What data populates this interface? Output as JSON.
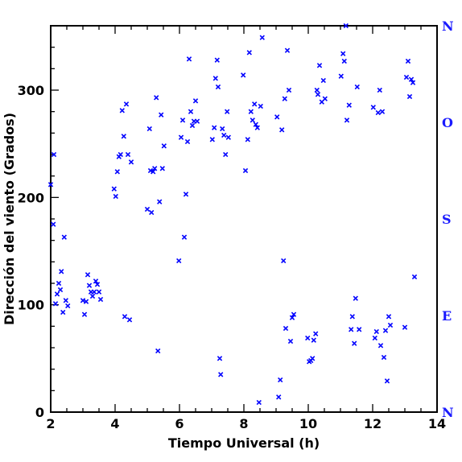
{
  "chart_data": {
    "type": "scatter",
    "xlabel": "Tiempo Universal (h)",
    "ylabel": "Dirección del viento (Grados)",
    "xlim": [
      2,
      14
    ],
    "ylim": [
      0,
      360
    ],
    "x_ticks": [
      2,
      4,
      6,
      8,
      10,
      12,
      14
    ],
    "y_ticks": [
      0,
      100,
      200,
      300
    ],
    "right_axis_labels": [
      {
        "label": "N",
        "value": 0
      },
      {
        "label": "E",
        "value": 90
      },
      {
        "label": "S",
        "value": 180
      },
      {
        "label": "O",
        "value": 270
      },
      {
        "label": "N",
        "value": 360
      }
    ],
    "grid": false,
    "marker": "x",
    "colors": {
      "marker": "#0000ff",
      "right_axis": "#1a1aff",
      "axis": "#000000"
    },
    "points": [
      [
        2.0,
        212
      ],
      [
        2.08,
        175
      ],
      [
        2.1,
        240
      ],
      [
        2.15,
        101
      ],
      [
        2.2,
        110
      ],
      [
        2.25,
        120
      ],
      [
        2.3,
        114
      ],
      [
        2.33,
        131
      ],
      [
        2.38,
        93
      ],
      [
        2.42,
        163
      ],
      [
        2.47,
        104
      ],
      [
        2.53,
        99
      ],
      [
        3.0,
        104
      ],
      [
        3.05,
        91
      ],
      [
        3.1,
        103
      ],
      [
        3.15,
        128
      ],
      [
        3.2,
        118
      ],
      [
        3.25,
        112
      ],
      [
        3.3,
        108
      ],
      [
        3.35,
        112
      ],
      [
        3.4,
        122
      ],
      [
        3.45,
        119
      ],
      [
        3.5,
        112
      ],
      [
        3.55,
        105
      ],
      [
        3.97,
        208
      ],
      [
        4.02,
        201
      ],
      [
        4.07,
        224
      ],
      [
        4.12,
        238
      ],
      [
        4.17,
        240
      ],
      [
        4.22,
        281
      ],
      [
        4.27,
        257
      ],
      [
        4.3,
        89
      ],
      [
        4.35,
        287
      ],
      [
        4.4,
        240
      ],
      [
        4.45,
        86
      ],
      [
        4.5,
        233
      ],
      [
        5.0,
        189
      ],
      [
        5.07,
        264
      ],
      [
        5.1,
        225
      ],
      [
        5.13,
        186
      ],
      [
        5.18,
        224
      ],
      [
        5.23,
        227
      ],
      [
        5.28,
        293
      ],
      [
        5.33,
        57
      ],
      [
        5.38,
        196
      ],
      [
        5.43,
        277
      ],
      [
        5.47,
        227
      ],
      [
        5.52,
        248
      ],
      [
        5.98,
        141
      ],
      [
        6.05,
        256
      ],
      [
        6.1,
        272
      ],
      [
        6.15,
        163
      ],
      [
        6.2,
        203
      ],
      [
        6.25,
        252
      ],
      [
        6.3,
        329
      ],
      [
        6.35,
        280
      ],
      [
        6.4,
        267
      ],
      [
        6.45,
        271
      ],
      [
        6.5,
        290
      ],
      [
        6.55,
        271
      ],
      [
        7.02,
        254
      ],
      [
        7.08,
        265
      ],
      [
        7.12,
        311
      ],
      [
        7.17,
        328
      ],
      [
        7.2,
        303
      ],
      [
        7.25,
        50
      ],
      [
        7.28,
        35
      ],
      [
        7.33,
        264
      ],
      [
        7.38,
        258
      ],
      [
        7.43,
        240
      ],
      [
        7.48,
        280
      ],
      [
        7.52,
        256
      ],
      [
        7.98,
        314
      ],
      [
        8.05,
        225
      ],
      [
        8.12,
        254
      ],
      [
        8.17,
        335
      ],
      [
        8.22,
        280
      ],
      [
        8.27,
        272
      ],
      [
        8.33,
        287
      ],
      [
        8.37,
        268
      ],
      [
        8.42,
        265
      ],
      [
        8.47,
        9
      ],
      [
        8.52,
        285
      ],
      [
        8.57,
        349
      ],
      [
        9.03,
        275
      ],
      [
        9.08,
        14
      ],
      [
        9.13,
        30
      ],
      [
        9.18,
        263
      ],
      [
        9.23,
        141
      ],
      [
        9.27,
        292
      ],
      [
        9.3,
        78
      ],
      [
        9.35,
        337
      ],
      [
        9.4,
        300
      ],
      [
        9.45,
        66
      ],
      [
        9.5,
        88
      ],
      [
        9.55,
        91
      ],
      [
        9.98,
        69
      ],
      [
        10.03,
        47
      ],
      [
        10.08,
        48
      ],
      [
        10.13,
        50
      ],
      [
        10.17,
        67
      ],
      [
        10.23,
        73
      ],
      [
        10.27,
        300
      ],
      [
        10.3,
        296
      ],
      [
        10.35,
        323
      ],
      [
        10.42,
        289
      ],
      [
        10.47,
        309
      ],
      [
        10.52,
        292
      ],
      [
        11.02,
        313
      ],
      [
        11.08,
        334
      ],
      [
        11.12,
        327
      ],
      [
        11.17,
        360
      ],
      [
        11.2,
        272
      ],
      [
        11.27,
        286
      ],
      [
        11.33,
        77
      ],
      [
        11.37,
        89
      ],
      [
        11.43,
        64
      ],
      [
        11.47,
        106
      ],
      [
        11.52,
        303
      ],
      [
        11.58,
        77
      ],
      [
        12.02,
        284
      ],
      [
        12.07,
        69
      ],
      [
        12.12,
        75
      ],
      [
        12.17,
        279
      ],
      [
        12.22,
        300
      ],
      [
        12.25,
        62
      ],
      [
        12.3,
        280
      ],
      [
        12.35,
        51
      ],
      [
        12.4,
        76
      ],
      [
        12.45,
        29
      ],
      [
        12.5,
        89
      ],
      [
        12.55,
        81
      ],
      [
        13.0,
        79
      ],
      [
        13.05,
        312
      ],
      [
        13.1,
        327
      ],
      [
        13.15,
        294
      ],
      [
        13.2,
        310
      ],
      [
        13.25,
        307
      ],
      [
        13.3,
        126
      ]
    ]
  }
}
